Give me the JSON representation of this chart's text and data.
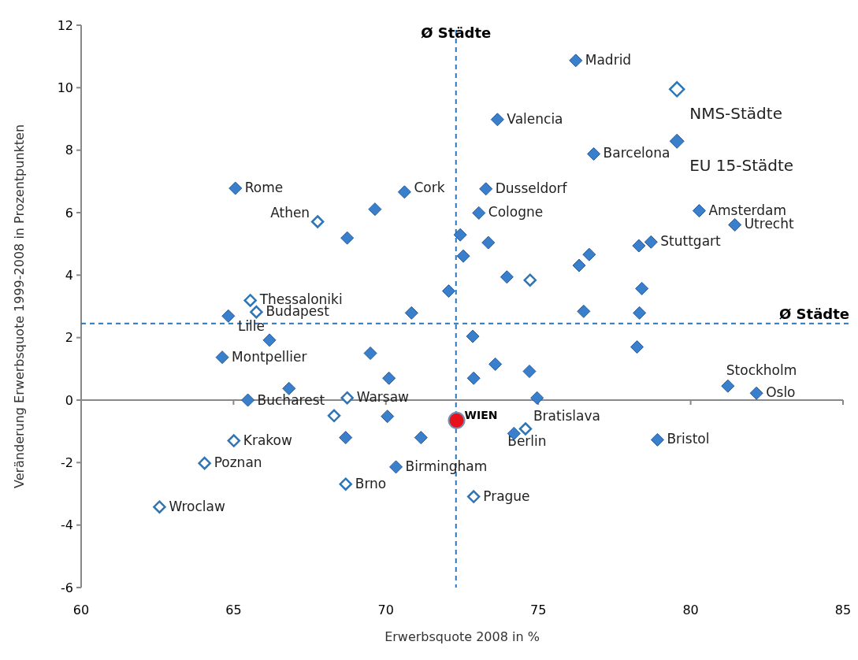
{
  "chart_data": {
    "type": "scatter",
    "xlabel": "Erwerbsquote 2008 in %",
    "ylabel": "Veränderung Erwerbsquote 1999-2008 in Prozentpunkten",
    "xlim": [
      60,
      85
    ],
    "xticks": [
      60,
      65,
      70,
      75,
      80,
      85
    ],
    "ylim": [
      -6,
      12
    ],
    "yticks": [
      -6,
      -4,
      -2,
      0,
      2,
      4,
      6,
      8,
      10,
      12
    ],
    "legend": "top right",
    "series": [
      {
        "name": "NMS-Städte",
        "color": "#2e75b6",
        "marker": "diamond",
        "x": [
          67.76,
          65.55,
          65.75,
          74.73,
          68.73,
          68.3,
          74.58,
          65.01,
          64.05,
          68.68,
          72.88,
          62.57
        ],
        "values": [
          5.71,
          3.19,
          2.82,
          3.84,
          0.07,
          -0.5,
          -0.92,
          -1.3,
          -2.02,
          -2.69,
          -3.09,
          -3.42
        ]
      },
      {
        "name": "EU 15-Städte",
        "color": "#3a7fcc",
        "marker": "diamond",
        "x": [
          76.23,
          73.66,
          76.82,
          65.06,
          70.61,
          73.28,
          69.64,
          73.05,
          80.28,
          81.45,
          68.73,
          72.44,
          73.36,
          72.54,
          78.7,
          78.3,
          76.67,
          76.34,
          73.97,
          78.4,
          72.06,
          70.84,
          76.49,
          78.32,
          64.83,
          66.18,
          72.85,
          64.63,
          69.49,
          78.24,
          73.59,
          74.71,
          70.1,
          72.88,
          66.82,
          65.47,
          74.96,
          81.22,
          82.16,
          70.05,
          68.68,
          71.15,
          74.2,
          78.91,
          70.33
        ],
        "values": [
          10.87,
          8.98,
          7.88,
          6.78,
          6.66,
          6.76,
          6.11,
          5.99,
          6.06,
          5.61,
          5.19,
          5.29,
          5.04,
          4.61,
          5.06,
          4.94,
          4.66,
          4.31,
          3.94,
          3.57,
          3.49,
          2.79,
          2.84,
          2.79,
          2.69,
          1.92,
          2.04,
          1.37,
          1.5,
          1.7,
          1.15,
          0.92,
          0.7,
          0.7,
          0.37,
          0.0,
          0.07,
          0.45,
          0.22,
          -0.52,
          -1.2,
          -1.2,
          -1.07,
          -1.27,
          -2.14
        ]
      },
      {
        "name": "WIEN",
        "color": "#e8101a",
        "marker": "circle",
        "x": [
          72.32
        ],
        "values": [
          -0.65
        ]
      }
    ],
    "ref_lines": [
      {
        "axis": "x",
        "value": 72.3,
        "label": "Ø Städte",
        "color": "#2e75b6",
        "line_style": "dashed"
      },
      {
        "axis": "y",
        "value": 2.45,
        "label": "Ø Städte",
        "color": "#2e75b6",
        "line_style": "dashed"
      }
    ],
    "annotations": [
      {
        "text": "Madrid",
        "x": 76.23,
        "y": 10.87
      },
      {
        "text": "Valencia",
        "x": 73.66,
        "y": 8.98
      },
      {
        "text": "Barcelona",
        "x": 76.82,
        "y": 7.88
      },
      {
        "text": "Rome",
        "x": 65.06,
        "y": 6.78
      },
      {
        "text": "Cork",
        "x": 70.61,
        "y": 6.66
      },
      {
        "text": "Dusseldorf",
        "x": 73.28,
        "y": 6.76
      },
      {
        "text": "Cologne",
        "x": 73.05,
        "y": 5.99
      },
      {
        "text": "Amsterdam",
        "x": 80.28,
        "y": 6.06
      },
      {
        "text": "Utrecht",
        "x": 81.45,
        "y": 5.61
      },
      {
        "text": "Stuttgart",
        "x": 78.7,
        "y": 5.06
      },
      {
        "text": "Athen",
        "x": 67.76,
        "y": 5.71
      },
      {
        "text": "Thessaloniki",
        "x": 65.55,
        "y": 3.19
      },
      {
        "text": "Budapest",
        "x": 65.75,
        "y": 2.82
      },
      {
        "text": "Lille",
        "x": 66.18,
        "y": 1.92
      },
      {
        "text": "Montpellier",
        "x": 64.63,
        "y": 1.37
      },
      {
        "text": "Warsaw",
        "x": 68.73,
        "y": 0.07
      },
      {
        "text": "Bucharest",
        "x": 65.47,
        "y": 0.0
      },
      {
        "text": "Stockholm",
        "x": 81.22,
        "y": 0.45
      },
      {
        "text": "Oslo",
        "x": 82.16,
        "y": 0.22
      },
      {
        "text": "Bratislava",
        "x": 74.58,
        "y": -0.92
      },
      {
        "text": "Berlin",
        "x": 74.2,
        "y": -1.07
      },
      {
        "text": "Bristol",
        "x": 78.91,
        "y": -1.27
      },
      {
        "text": "Krakow",
        "x": 65.01,
        "y": -1.3
      },
      {
        "text": "Poznan",
        "x": 64.05,
        "y": -2.02
      },
      {
        "text": "Birmingham",
        "x": 70.33,
        "y": -2.14
      },
      {
        "text": "Brno",
        "x": 68.68,
        "y": -2.69
      },
      {
        "text": "Prague",
        "x": 72.88,
        "y": -3.09
      },
      {
        "text": "Wroclaw",
        "x": 62.57,
        "y": -3.42
      }
    ]
  }
}
